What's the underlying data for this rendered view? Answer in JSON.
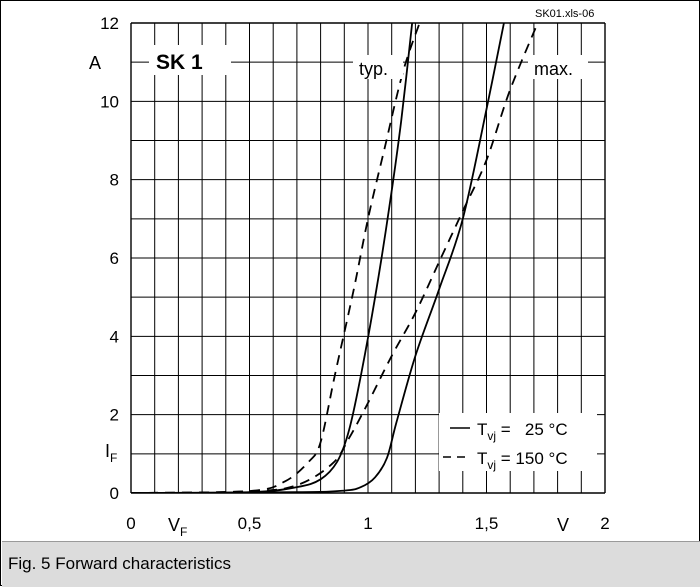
{
  "chart_data": {
    "type": "line",
    "source_label": "SK01.xls-06",
    "panel_label": "SK 1",
    "curve_tags": [
      "typ.",
      "max."
    ],
    "y_unit": "A",
    "y_symbol": "I",
    "y_symbol_sub": "F",
    "x_unit": "V",
    "x_symbol": "V",
    "x_symbol_sub": "F",
    "xlim": [
      0,
      2
    ],
    "ylim": [
      0,
      12
    ],
    "x_ticks": [
      {
        "value": 0,
        "label": "0"
      },
      {
        "value": 0.5,
        "label": "0,5"
      },
      {
        "value": 1,
        "label": "1"
      },
      {
        "value": 1.5,
        "label": "1,5"
      },
      {
        "value": 2,
        "label": "2"
      }
    ],
    "y_ticks": [
      {
        "value": 0,
        "label": "0"
      },
      {
        "value": 2,
        "label": "2"
      },
      {
        "value": 4,
        "label": "4"
      },
      {
        "value": 6,
        "label": "6"
      },
      {
        "value": 8,
        "label": "8"
      },
      {
        "value": 10,
        "label": "10"
      },
      {
        "value": 12,
        "label": "12"
      }
    ],
    "grid": true,
    "legend": [
      {
        "symbol": "—",
        "label_main": "T",
        "label_sub": "vj",
        "label_rest": " =   25 °C",
        "dash": "solid"
      },
      {
        "symbol": "- -",
        "label_main": "T",
        "label_sub": "vj",
        "label_rest": " = 150 °C",
        "dash": "dashed"
      }
    ],
    "legend_position": "bottom-right",
    "series": [
      {
        "tag": "typ.",
        "dash": "solid",
        "points": [
          [
            0,
            0
          ],
          [
            0.5,
            0.02
          ],
          [
            0.7,
            0.15
          ],
          [
            0.8,
            0.35
          ],
          [
            0.87,
            0.8
          ],
          [
            0.92,
            1.6
          ],
          [
            0.97,
            3.0
          ],
          [
            1.03,
            5.0
          ],
          [
            1.09,
            7.3
          ],
          [
            1.14,
            9.5
          ],
          [
            1.19,
            12.2
          ]
        ]
      },
      {
        "tag": "typ.",
        "dash": "dashed",
        "points": [
          [
            0,
            0
          ],
          [
            0.5,
            0.05
          ],
          [
            0.65,
            0.3
          ],
          [
            0.75,
            0.8
          ],
          [
            0.8,
            1.3
          ],
          [
            0.86,
            3.0
          ],
          [
            0.94,
            5.2
          ],
          [
            1.0,
            7.0
          ],
          [
            1.07,
            8.8
          ],
          [
            1.15,
            10.8
          ],
          [
            1.23,
            12.2
          ]
        ]
      },
      {
        "tag": "max.",
        "dash": "solid",
        "points": [
          [
            0,
            0
          ],
          [
            0.7,
            0.02
          ],
          [
            0.9,
            0.06
          ],
          [
            0.97,
            0.15
          ],
          [
            1.03,
            0.4
          ],
          [
            1.08,
            0.9
          ],
          [
            1.12,
            1.8
          ],
          [
            1.2,
            3.5
          ],
          [
            1.3,
            5.2
          ],
          [
            1.4,
            7.0
          ],
          [
            1.5,
            9.8
          ],
          [
            1.58,
            12.2
          ]
        ]
      },
      {
        "tag": "max.",
        "dash": "dashed",
        "points": [
          [
            0,
            0
          ],
          [
            0.5,
            0.04
          ],
          [
            0.7,
            0.2
          ],
          [
            0.85,
            0.75
          ],
          [
            0.92,
            1.4
          ],
          [
            1.0,
            2.3
          ],
          [
            1.1,
            3.5
          ],
          [
            1.2,
            4.6
          ],
          [
            1.3,
            5.9
          ],
          [
            1.4,
            7.2
          ],
          [
            1.5,
            8.5
          ],
          [
            1.6,
            10.3
          ],
          [
            1.73,
            12.2
          ]
        ]
      }
    ]
  },
  "caption": "Fig. 5 Forward characteristics"
}
